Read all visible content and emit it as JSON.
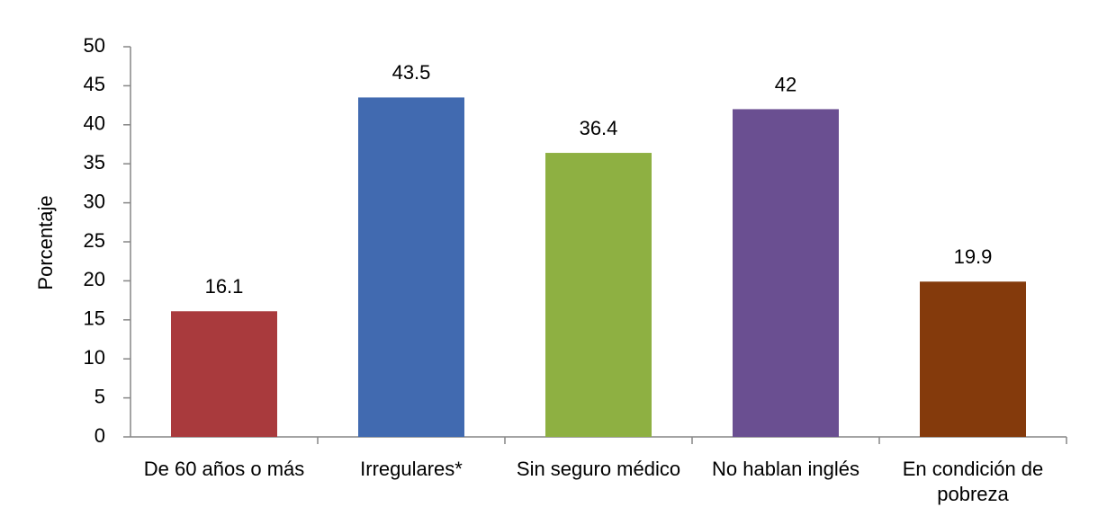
{
  "chart_data": {
    "type": "bar",
    "y_label": "Porcentaje",
    "categories": [
      "De 60 años o más",
      "Irregulares*",
      "Sin seguro médico",
      "No hablan inglés",
      "En condición de pobreza"
    ],
    "values": [
      16.1,
      43.5,
      36.4,
      42,
      19.9
    ],
    "colors": [
      "#a93a3d",
      "#416ab0",
      "#8eb042",
      "#6a4f91",
      "#843a0c"
    ],
    "ylim": [
      0,
      50
    ],
    "yticks": [
      0,
      5,
      10,
      15,
      20,
      25,
      30,
      35,
      40,
      45,
      50
    ]
  }
}
